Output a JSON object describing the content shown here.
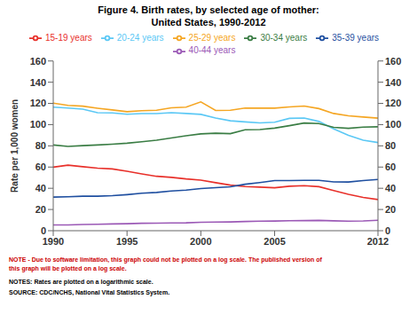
{
  "chart_data": {
    "type": "line",
    "title": "Figure 4.  Birth rates, by selected age of mother:",
    "subtitle": "United States, 1990-2012",
    "y_label": "Rate per 1,000 women",
    "x": [
      1990,
      1991,
      1992,
      1993,
      1994,
      1995,
      1996,
      1997,
      1998,
      1999,
      2000,
      2001,
      2002,
      2003,
      2004,
      2005,
      2006,
      2007,
      2008,
      2009,
      2010,
      2011,
      2012
    ],
    "xlim": [
      1990,
      2012
    ],
    "xticks": [
      1990,
      1995,
      2000,
      2005,
      2012
    ],
    "ylim": [
      0,
      160
    ],
    "yticks": [
      0,
      20,
      40,
      60,
      80,
      100,
      120,
      140,
      160
    ],
    "y2lim": [
      0,
      160
    ],
    "y2ticks": [
      0,
      20,
      40,
      60,
      80,
      100,
      120,
      140,
      160
    ],
    "grid": false,
    "legend": "top",
    "series": [
      {
        "name": "15-19 years",
        "color": "#e8302a",
        "values": [
          59.9,
          61.8,
          60.3,
          59.0,
          58.2,
          56.0,
          53.5,
          51.3,
          50.3,
          48.8,
          47.7,
          45.3,
          43.0,
          41.6,
          41.1,
          40.5,
          41.9,
          42.5,
          41.5,
          37.9,
          34.3,
          31.3,
          29.4
        ]
      },
      {
        "name": "20-24 years",
        "color": "#5bc8f5",
        "values": [
          116.5,
          115.7,
          114.6,
          111.3,
          111.1,
          109.8,
          110.4,
          110.4,
          111.2,
          110.5,
          109.7,
          106.2,
          103.6,
          102.6,
          101.6,
          102.2,
          105.9,
          106.2,
          103.0,
          96.0,
          90.0,
          85.3,
          83.1
        ]
      },
      {
        "name": "25-29 years",
        "color": "#f5a623",
        "values": [
          120.2,
          118.2,
          117.4,
          115.5,
          113.9,
          112.2,
          113.1,
          113.5,
          115.9,
          116.5,
          121.4,
          113.4,
          113.6,
          115.6,
          115.5,
          115.5,
          116.7,
          117.5,
          115.1,
          110.5,
          108.3,
          107.2,
          106.1
        ]
      },
      {
        "name": "35-39 years",
        "color": "#1f4fa0",
        "values": [
          31.7,
          32.0,
          32.5,
          32.5,
          33.0,
          34.0,
          35.3,
          36.1,
          37.4,
          38.3,
          39.7,
          40.6,
          41.4,
          43.8,
          45.4,
          47.3,
          47.3,
          47.5,
          47.5,
          46.0,
          45.9,
          47.2,
          48.3
        ]
      },
      {
        "name": "30-34 years",
        "color": "#3a7d44",
        "values": [
          80.8,
          79.5,
          80.2,
          80.8,
          81.5,
          82.5,
          83.9,
          85.3,
          87.4,
          89.5,
          91.3,
          91.9,
          91.5,
          95.1,
          95.3,
          96.7,
          99.0,
          101.5,
          101.0,
          97.5,
          96.5,
          97.6,
          98.0
        ]
      },
      {
        "name": "40-44 years",
        "color": "#9b59b6",
        "values": [
          5.5,
          5.5,
          5.9,
          6.1,
          6.4,
          6.6,
          7.0,
          7.1,
          7.3,
          7.4,
          7.9,
          8.1,
          8.3,
          8.7,
          9.0,
          9.1,
          9.4,
          9.5,
          9.7,
          9.3,
          9.0,
          9.2,
          9.8
        ]
      }
    ],
    "annotations": [
      {
        "text": "NOTE - Due to software limitation, this graph could not be plotted on a log scale.  The published version of\nthis graph will be plotted on a log scale.",
        "color": "#cc0000"
      },
      {
        "text": "NOTES:  Rates are plotted on a logarithmic scale.",
        "color": "#000000"
      },
      {
        "text": "SOURCE: CDC/NCHS, National Vital Statistics System.",
        "color": "#000000"
      }
    ]
  }
}
